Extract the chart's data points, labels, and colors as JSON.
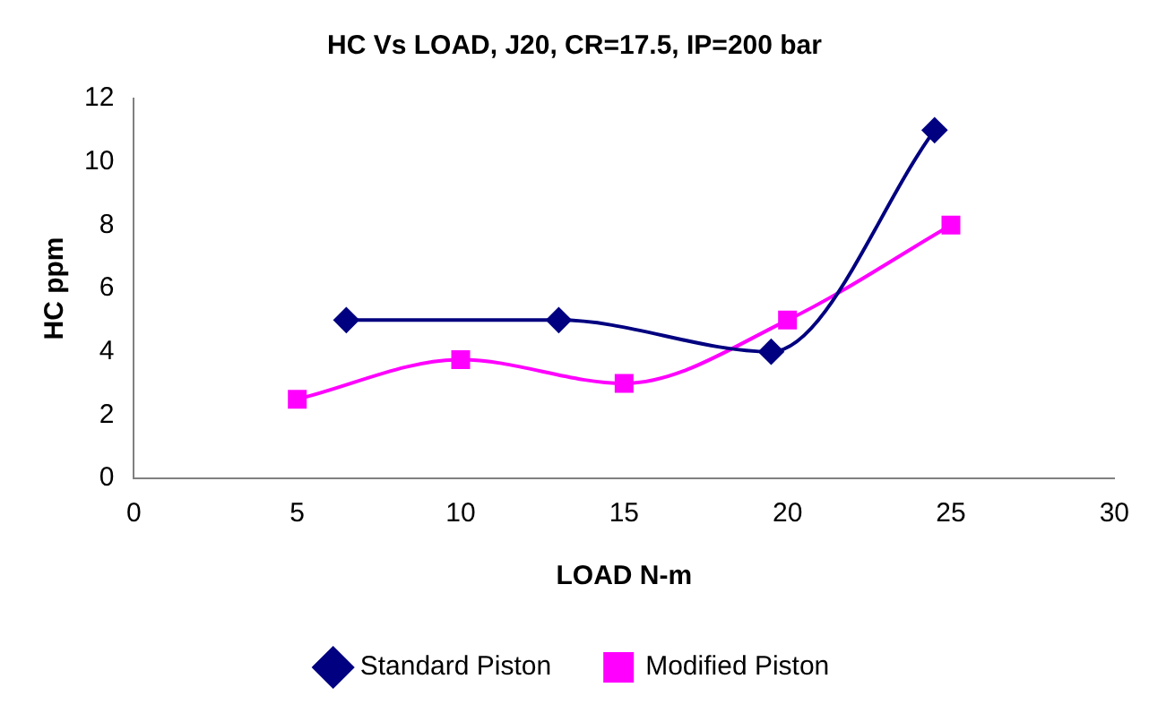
{
  "chart_data": {
    "type": "line",
    "title": "HC Vs LOAD, J20, CR=17.5, IP=200 bar",
    "xlabel": "LOAD N-m",
    "ylabel": "HC ppm",
    "xlim": [
      0,
      30
    ],
    "xticks": [
      0,
      5,
      10,
      15,
      20,
      25,
      30
    ],
    "ylim": [
      0,
      12
    ],
    "yticks": [
      0,
      2,
      4,
      6,
      8,
      10,
      12
    ],
    "grid": false,
    "legend": "bottom",
    "series": [
      {
        "name": "Standard Piston",
        "color": "#000080",
        "marker": "diamond",
        "x": [
          6.5,
          13,
          19.5,
          24.5
        ],
        "values": [
          5,
          5,
          4,
          11
        ]
      },
      {
        "name": "Modified Piston",
        "color": "#ff00ff",
        "marker": "square",
        "x": [
          5,
          10,
          15,
          20,
          25
        ],
        "values": [
          2.5,
          3.75,
          3,
          5,
          8
        ]
      }
    ]
  }
}
